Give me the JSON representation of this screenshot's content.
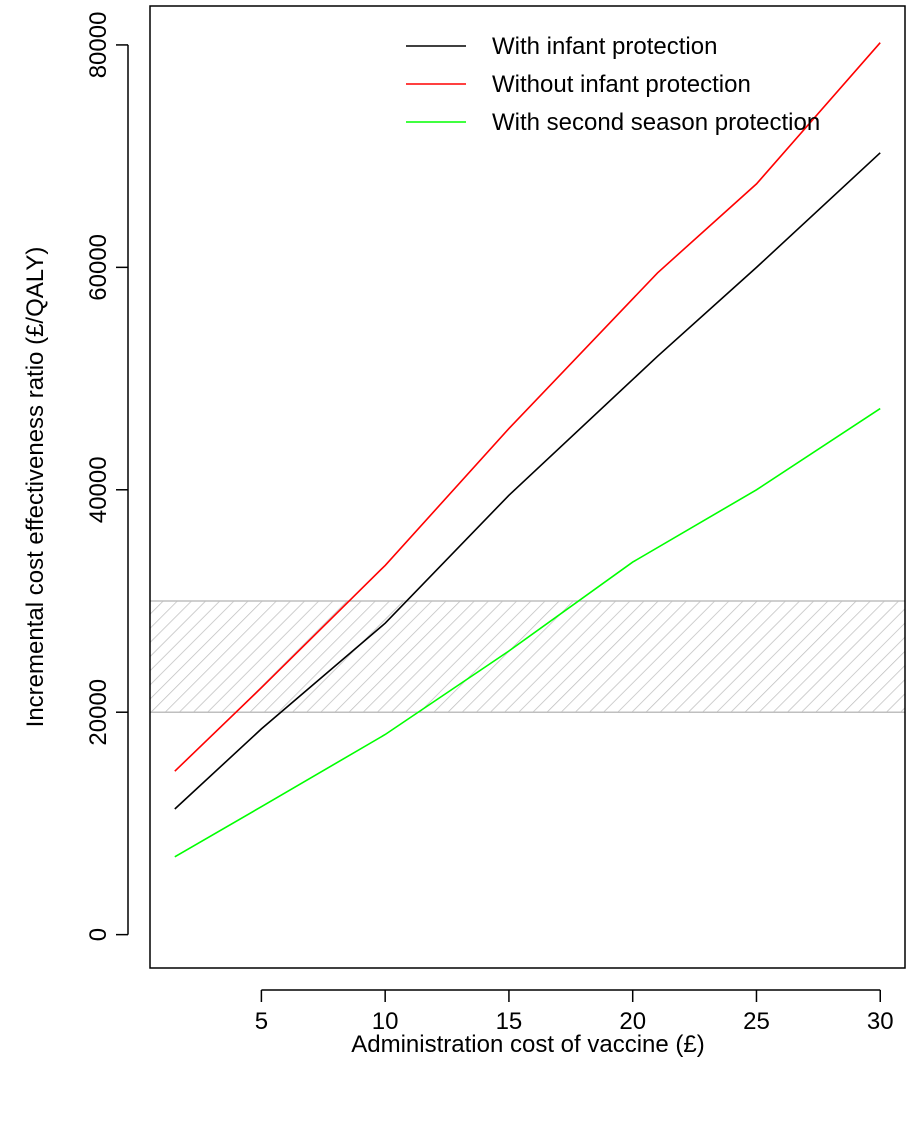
{
  "chart_data": {
    "type": "line",
    "title": "",
    "xlabel": "Administration cost of vaccine (£)",
    "ylabel": "Incremental cost effectiveness ratio (£/QALY)",
    "xlim": [
      0.5,
      31
    ],
    "ylim": [
      -3000,
      83500
    ],
    "x_ticks": [
      5,
      10,
      15,
      20,
      25,
      30
    ],
    "y_ticks": [
      0,
      20000,
      40000,
      60000,
      80000
    ],
    "grid": false,
    "legend_position": "top-right",
    "shaded_band": {
      "y_low": 20000,
      "y_high": 30000,
      "fill": "diagonal-hatch",
      "color": "#bfbfbf"
    },
    "series": [
      {
        "name": "With infant protection",
        "color": "#000000",
        "x": [
          1.5,
          5,
          10,
          15,
          21,
          25,
          30
        ],
        "y": [
          11300,
          18500,
          28000,
          39500,
          52000,
          60000,
          70300
        ]
      },
      {
        "name": "Without infant protection",
        "color": "#ff0000",
        "x": [
          1.5,
          5,
          10,
          15,
          21,
          25,
          30
        ],
        "y": [
          14700,
          22200,
          33200,
          45500,
          59500,
          67500,
          80200
        ]
      },
      {
        "name": "With second season protection",
        "color": "#00ff00",
        "x": [
          1.5,
          5,
          10,
          15,
          20,
          25,
          30
        ],
        "y": [
          7000,
          11500,
          18000,
          25500,
          33500,
          40000,
          47300
        ]
      }
    ]
  }
}
